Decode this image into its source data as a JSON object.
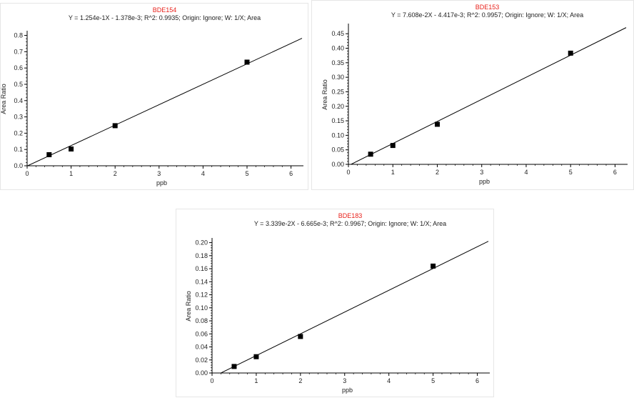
{
  "colors": {
    "title": "#e8211b",
    "marker": "#000000",
    "line": "#000000",
    "axis": "#000000"
  },
  "chart_data": [
    {
      "type": "scatter",
      "title": "BDE154",
      "subtitle": "Y = 1.254e-1X - 1.378e-3; R^2: 0.9935; Origin: Ignore; W: 1/X; Area",
      "xlabel": "ppb",
      "ylabel": "Area Ratio",
      "xlim": [
        0,
        6.25
      ],
      "ylim": [
        0,
        0.82
      ],
      "x_ticks": [
        0,
        1,
        2,
        3,
        4,
        5,
        6
      ],
      "y_ticks": [
        0.0,
        0.1,
        0.2,
        0.3,
        0.4,
        0.5,
        0.6,
        0.7,
        0.8
      ],
      "y_tick_labels": [
        "0.0",
        "0.1",
        "0.2",
        "0.3",
        "0.4",
        "0.5",
        "0.6",
        "0.7",
        "0.8"
      ],
      "x": [
        0.5,
        1,
        2,
        5
      ],
      "y": [
        0.068,
        0.103,
        0.246,
        0.636
      ],
      "fit": {
        "slope": 0.1254,
        "intercept": -0.001378
      },
      "grid": false
    },
    {
      "type": "scatter",
      "title": "BDE153",
      "subtitle": "Y = 7.608e-2X - 4.417e-3; R^2: 0.9957; Origin: Ignore; W: 1/X; Area",
      "xlabel": "ppb",
      "ylabel": "Area Ratio",
      "xlim": [
        0,
        6.25
      ],
      "ylim": [
        0,
        0.48
      ],
      "x_ticks": [
        0,
        1,
        2,
        3,
        4,
        5,
        6
      ],
      "y_ticks": [
        0.0,
        0.05,
        0.1,
        0.15,
        0.2,
        0.25,
        0.3,
        0.35,
        0.4,
        0.45
      ],
      "y_tick_labels": [
        "0.00",
        "0.05",
        "0.10",
        "0.15",
        "0.20",
        "0.25",
        "0.30",
        "0.35",
        "0.40",
        "0.45"
      ],
      "x": [
        0.5,
        1,
        2,
        5
      ],
      "y": [
        0.035,
        0.065,
        0.138,
        0.383
      ],
      "fit": {
        "slope": 0.07608,
        "intercept": -0.004417
      },
      "grid": false
    },
    {
      "type": "scatter",
      "title": "BDE183",
      "subtitle": "Y = 3.339e-2X - 6.665e-3; R^2: 0.9967; Origin: Ignore; W: 1/X; Area",
      "xlabel": "ppb",
      "ylabel": "Area Ratio",
      "xlim": [
        0,
        6.25
      ],
      "ylim": [
        0,
        0.205
      ],
      "x_ticks": [
        0,
        1,
        2,
        3,
        4,
        5,
        6
      ],
      "y_ticks": [
        0.0,
        0.02,
        0.04,
        0.06,
        0.08,
        0.1,
        0.12,
        0.14,
        0.16,
        0.18,
        0.2
      ],
      "y_tick_labels": [
        "0.00",
        "0.02",
        "0.04",
        "0.06",
        "0.08",
        "0.10",
        "0.12",
        "0.14",
        "0.16",
        "0.18",
        "0.20"
      ],
      "x": [
        0.5,
        1,
        2,
        5
      ],
      "y": [
        0.01,
        0.025,
        0.056,
        0.164
      ],
      "fit": {
        "slope": 0.03339,
        "intercept": -0.006665
      },
      "grid": false
    }
  ]
}
